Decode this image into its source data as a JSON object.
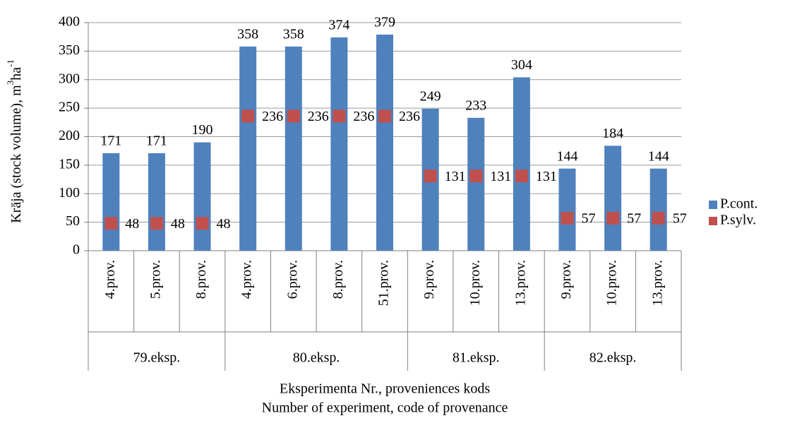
{
  "chart_data": {
    "type": "bar_marker",
    "groups": [
      {
        "name": "79.eksp.",
        "categories": [
          "4.prov.",
          "5.prov.",
          "8.prov."
        ]
      },
      {
        "name": "80.eksp.",
        "categories": [
          "4.prov.",
          "6.prov.",
          "8.prov.",
          "51.prov."
        ]
      },
      {
        "name": "81.eksp.",
        "categories": [
          "9.prov.",
          "10.prov.",
          "13.prov."
        ]
      },
      {
        "name": "82.eksp.",
        "categories": [
          "9.prov.",
          "10.prov.",
          "13.prov."
        ]
      }
    ],
    "series": [
      {
        "name": "P.cont.",
        "color": "#4f81bd",
        "values": [
          171,
          171,
          190,
          358,
          358,
          374,
          379,
          249,
          233,
          304,
          144,
          184,
          144
        ]
      },
      {
        "name": "P.sylv.",
        "color": "#c0504d",
        "values": [
          48,
          48,
          48,
          236,
          236,
          236,
          236,
          131,
          131,
          131,
          57,
          57,
          57
        ]
      }
    ],
    "y_label_parts": [
      {
        "text": "Krāja (stock volume),  m"
      },
      {
        "text": "3",
        "sup": true
      },
      {
        "text": "ha"
      },
      {
        "text": "-1",
        "sup": true
      }
    ],
    "x_label": [
      "Eksperimenta  Nr., proveniences  kods",
      "Number of experiment,  code of provenance"
    ],
    "ylim": [
      0,
      400
    ],
    "yticks": [
      0,
      50,
      100,
      150,
      200,
      250,
      300,
      350,
      400
    ],
    "grid": true,
    "legend": "right"
  }
}
